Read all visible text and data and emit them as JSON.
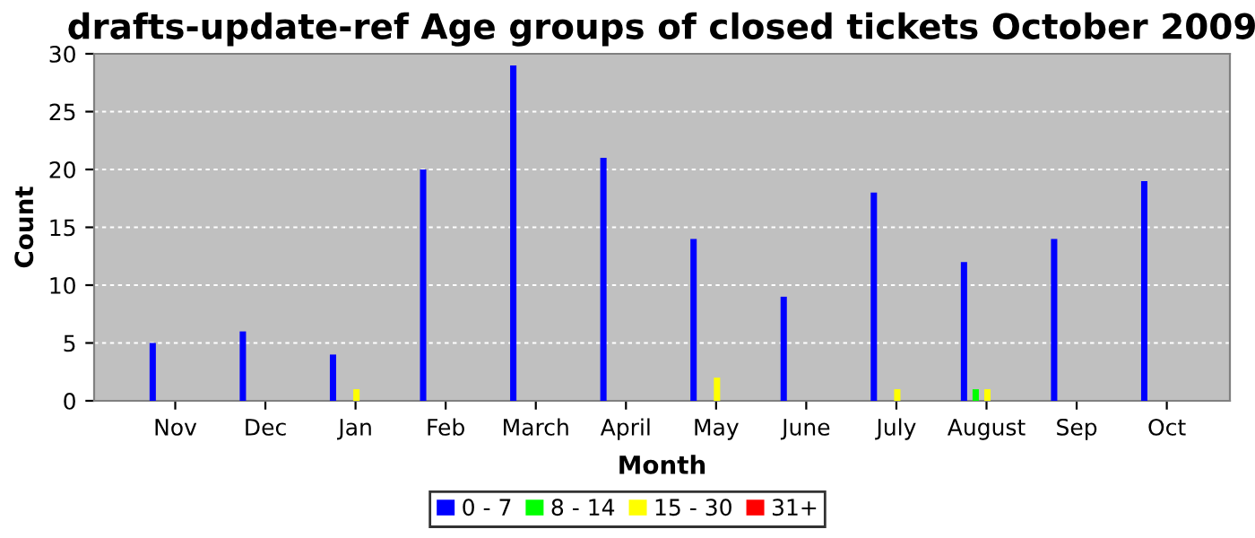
{
  "chart_data": {
    "type": "bar",
    "title": "drafts-update-ref Age groups of closed tickets October 2009",
    "xlabel": "Month",
    "ylabel": "Count",
    "categories": [
      "Nov",
      "Dec",
      "Jan",
      "Feb",
      "March",
      "April",
      "May",
      "June",
      "July",
      "August",
      "Sep",
      "Oct"
    ],
    "series": [
      {
        "name": "0 - 7",
        "color": "#0000ff",
        "values": [
          5,
          6,
          4,
          20,
          29,
          21,
          14,
          9,
          18,
          12,
          14,
          19
        ]
      },
      {
        "name": "8 - 14",
        "color": "#00ff00",
        "values": [
          0,
          0,
          0,
          0,
          0,
          0,
          0,
          0,
          0,
          1,
          0,
          0
        ]
      },
      {
        "name": "15 - 30",
        "color": "#ffff00",
        "values": [
          0,
          0,
          1,
          0,
          0,
          0,
          2,
          0,
          1,
          1,
          0,
          0
        ]
      },
      {
        "name": "31+",
        "color": "#ff0000",
        "values": [
          0,
          0,
          0,
          0,
          0,
          0,
          0,
          0,
          0,
          0,
          0,
          0
        ]
      }
    ],
    "ylim": [
      0,
      30
    ],
    "yticks": [
      0,
      5,
      10,
      15,
      20,
      25,
      30
    ],
    "grid": "y",
    "legend": "bottom"
  }
}
